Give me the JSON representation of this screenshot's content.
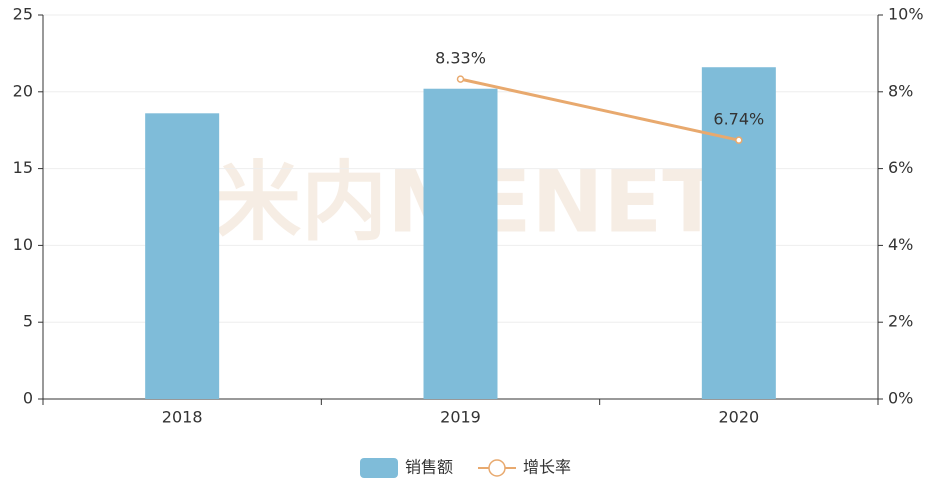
{
  "chart_data": {
    "type": "bar",
    "watermark": "米内MENET",
    "categories": [
      "2018",
      "2019",
      "2020"
    ],
    "series": [
      {
        "name": "销售额",
        "type": "bar",
        "color": "#7fbcd9",
        "values": [
          18.6,
          20.2,
          21.6
        ]
      },
      {
        "name": "增长率",
        "type": "line",
        "axis": "y2",
        "color": "#e8a96e",
        "values": [
          null,
          8.33,
          6.74
        ],
        "value_labels": [
          null,
          "8.33%",
          "6.74%"
        ]
      }
    ],
    "ylim": [
      0,
      25
    ],
    "yticks": [
      0,
      5,
      10,
      15,
      20,
      25
    ],
    "y2lim": [
      0,
      10
    ],
    "y2ticks": [
      {
        "value": 0,
        "label": "0%"
      },
      {
        "value": 2,
        "label": "2%"
      },
      {
        "value": 4,
        "label": "4%"
      },
      {
        "value": 6,
        "label": "6%"
      },
      {
        "value": 8,
        "label": "8%"
      },
      {
        "value": 10,
        "label": "10%"
      }
    ],
    "grid": true,
    "legend": "bottom"
  }
}
